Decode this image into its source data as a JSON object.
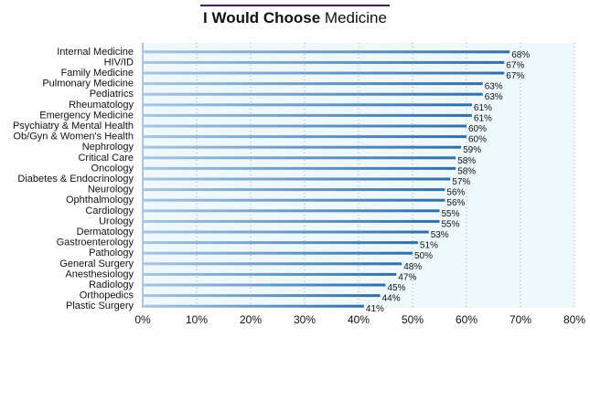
{
  "title": {
    "bold": "I Would Choose",
    "normal": "Medicine"
  },
  "chart_data": {
    "type": "bar",
    "orientation": "horizontal",
    "title": "I Would Choose Medicine",
    "categories": [
      "Internal Medicine",
      "HIV/ID",
      "Family Medicine",
      "Pulmonary Medicine",
      "Pediatrics",
      "Rheumatology",
      "Emergency Medicine",
      "Psychiatry & Mental Health",
      "Ob/Gyn & Women's Health",
      "Nephrology",
      "Critical Care",
      "Oncology",
      "Diabetes & Endocrinology",
      "Neurology",
      "Ophthalmology",
      "Cardiology",
      "Urology",
      "Dermatology",
      "Gastroenterology",
      "Pathology",
      "General Surgery",
      "Anesthesiology",
      "Radiology",
      "Orthopedics",
      "Plastic Surgery"
    ],
    "values": [
      68,
      67,
      67,
      63,
      63,
      61,
      61,
      60,
      60,
      59,
      58,
      58,
      57,
      56,
      56,
      55,
      55,
      53,
      51,
      50,
      48,
      47,
      45,
      44,
      41
    ],
    "value_labels": [
      "68%",
      "67%",
      "67%",
      "63%",
      "63%",
      "61%",
      "61%",
      "60%",
      "60%",
      "59%",
      "58%",
      "58%",
      "57%",
      "56%",
      "56%",
      "55%",
      "55%",
      "53%",
      "51%",
      "50%",
      "48%",
      "47%",
      "45%",
      "44%",
      "41%"
    ],
    "xlim": [
      0,
      80
    ],
    "x_ticks": [
      "0%",
      "10%",
      "20%",
      "30%",
      "40%",
      "50%",
      "60%",
      "70%",
      "80%"
    ],
    "grid": true,
    "colors": {
      "bar": "#2f6ea8",
      "bar_light": "#a9c6e2",
      "plot_bg": "#eef8fd",
      "grid": "#9aa9b8",
      "title_rule": "#4a1a55"
    }
  }
}
